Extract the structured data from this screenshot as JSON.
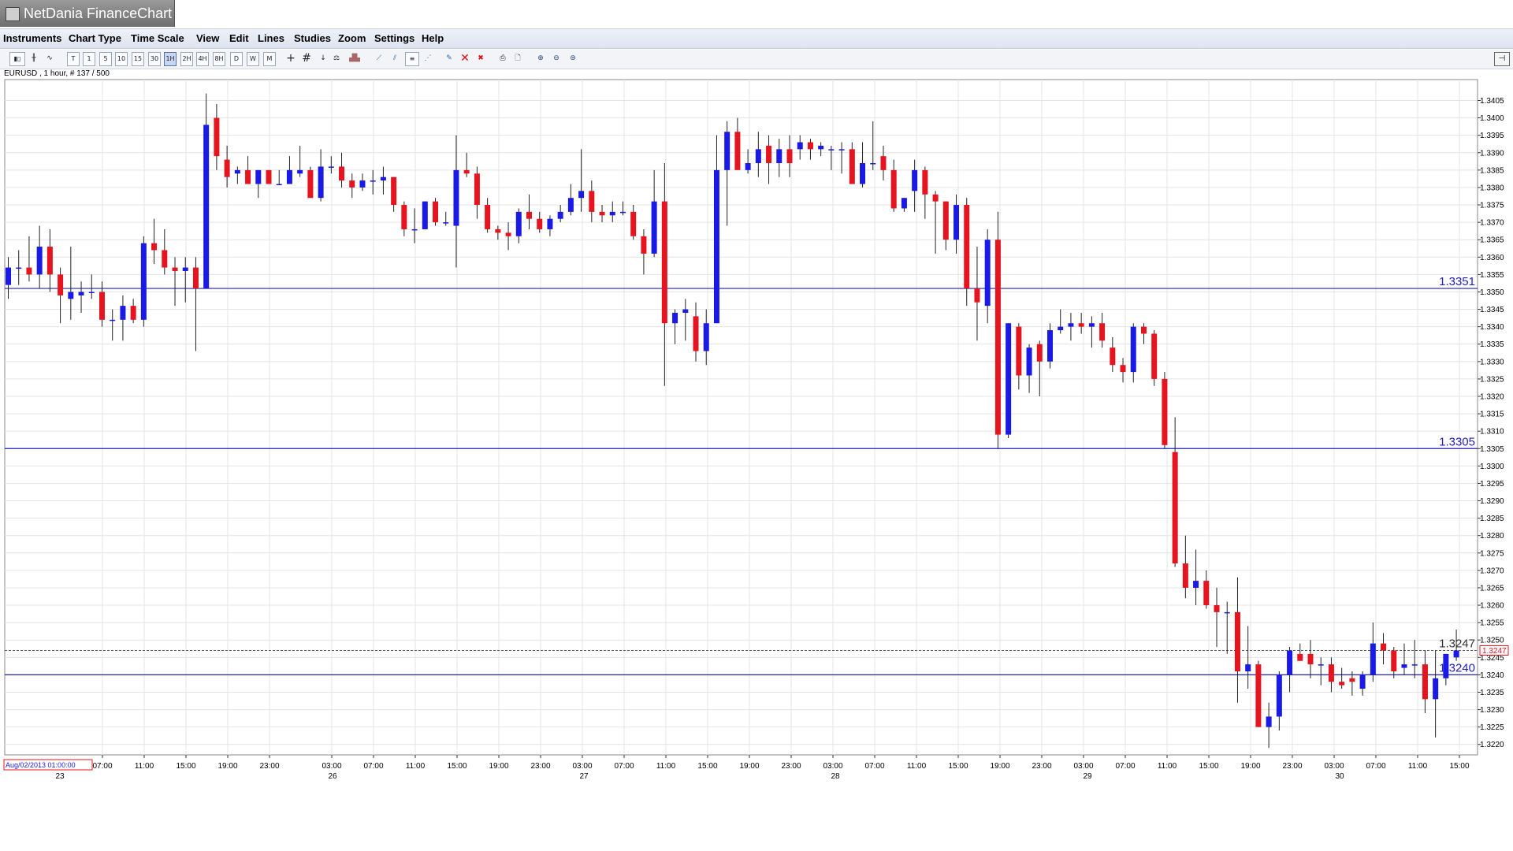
{
  "window": {
    "title": "NetDania FinanceChart"
  },
  "menu": [
    "Instruments",
    "Chart Type",
    "Time Scale",
    "View",
    "Edit",
    "Lines",
    "Studies",
    "Zoom",
    "Settings",
    "Help"
  ],
  "toolbar": {
    "timescale_buttons": [
      "T",
      "1",
      "5",
      "10",
      "15",
      "30",
      "1H",
      "2H",
      "4H",
      "8H",
      "D",
      "W",
      "M"
    ],
    "selected": "1H"
  },
  "chart_info": "EURUSD , 1 hour, # 137 / 500",
  "colors": {
    "up": "#1a1ae6",
    "down": "#e6141e",
    "hline": "#2222bb",
    "grid": "#e4e4e4"
  },
  "chart_data": {
    "type": "candlestick",
    "symbol": "EURUSD",
    "interval": "1 hour",
    "ylim": [
      1.3217,
      1.3411
    ],
    "y_ticks": [
      1.322,
      1.3225,
      1.323,
      1.3235,
      1.324,
      1.3245,
      1.325,
      1.3255,
      1.326,
      1.3265,
      1.327,
      1.3275,
      1.328,
      1.3285,
      1.329,
      1.3295,
      1.33,
      1.3305,
      1.331,
      1.3315,
      1.332,
      1.3325,
      1.333,
      1.3335,
      1.334,
      1.3345,
      1.335,
      1.3355,
      1.336,
      1.3365,
      1.337,
      1.3375,
      1.338,
      1.3385,
      1.339,
      1.3395,
      1.34,
      1.3405
    ],
    "x_time_labels": [
      "07:00",
      "11:00",
      "15:00",
      "19:00",
      "23:00",
      "03:00",
      "07:00",
      "11:00",
      "15:00",
      "19:00",
      "23:00",
      "03:00",
      "07:00",
      "11:00",
      "15:00",
      "19:00",
      "23:00",
      "03:00",
      "07:00",
      "11:00",
      "15:00",
      "19:00",
      "23:00",
      "03:00",
      "07:00",
      "11:00",
      "15:00",
      "19:00",
      "23:00",
      "03:00",
      "07:00",
      "11:00",
      "15:00"
    ],
    "x_date_labels": [
      "23",
      "26",
      "27",
      "28",
      "29",
      "30"
    ],
    "cursor_date": "Aug/02/2013 01:00:00",
    "horizontal_lines": [
      {
        "label": "1.3351",
        "value": 1.3351
      },
      {
        "label": "1.3305",
        "value": 1.3305
      },
      {
        "label": "1.3240",
        "value": 1.324
      }
    ],
    "current_price": {
      "label": "1.3247",
      "value": 1.3247
    },
    "candles": [
      [
        1.3352,
        1.336,
        1.3348,
        1.3357
      ],
      [
        1.3357,
        1.3362,
        1.3352,
        1.3357
      ],
      [
        1.3357,
        1.3366,
        1.3353,
        1.3355
      ],
      [
        1.3355,
        1.3369,
        1.3351,
        1.3363
      ],
      [
        1.3363,
        1.3368,
        1.335,
        1.3355
      ],
      [
        1.3355,
        1.3357,
        1.3341,
        1.3349
      ],
      [
        1.3348,
        1.3363,
        1.3342,
        1.335
      ],
      [
        1.3349,
        1.3353,
        1.3344,
        1.335
      ],
      [
        1.335,
        1.3355,
        1.3348,
        1.335
      ],
      [
        1.335,
        1.3353,
        1.334,
        1.3342
      ],
      [
        1.3342,
        1.3345,
        1.3336,
        1.3342
      ],
      [
        1.3342,
        1.3349,
        1.3336,
        1.3346
      ],
      [
        1.3346,
        1.3348,
        1.3341,
        1.3342
      ],
      [
        1.3342,
        1.3366,
        1.334,
        1.3364
      ],
      [
        1.3364,
        1.3371,
        1.3358,
        1.3362
      ],
      [
        1.3362,
        1.3368,
        1.3355,
        1.3357
      ],
      [
        1.3357,
        1.336,
        1.3346,
        1.3356
      ],
      [
        1.3356,
        1.336,
        1.3347,
        1.3357
      ],
      [
        1.3357,
        1.336,
        1.3333,
        1.3351
      ],
      [
        1.3351,
        1.3407,
        1.3351,
        1.3398
      ],
      [
        1.34,
        1.3404,
        1.3385,
        1.3389
      ],
      [
        1.3388,
        1.3392,
        1.338,
        1.3383
      ],
      [
        1.3384,
        1.3386,
        1.3381,
        1.3385
      ],
      [
        1.3385,
        1.3389,
        1.3381,
        1.3381
      ],
      [
        1.3381,
        1.3385,
        1.3377,
        1.3385
      ],
      [
        1.3385,
        1.3385,
        1.3381,
        1.3381
      ],
      [
        1.3381,
        1.3385,
        1.3381,
        1.3381
      ],
      [
        1.3381,
        1.3389,
        1.3381,
        1.3385
      ],
      [
        1.3384,
        1.3392,
        1.3383,
        1.3385
      ],
      [
        1.3385,
        1.3386,
        1.3377,
        1.3377
      ],
      [
        1.3377,
        1.3391,
        1.3376,
        1.3386
      ],
      [
        1.3386,
        1.3389,
        1.3384,
        1.3386
      ],
      [
        1.3386,
        1.339,
        1.338,
        1.3382
      ],
      [
        1.3382,
        1.3384,
        1.3377,
        1.338
      ],
      [
        1.338,
        1.3384,
        1.3379,
        1.3382
      ],
      [
        1.3382,
        1.3385,
        1.3378,
        1.3382
      ],
      [
        1.3382,
        1.3386,
        1.3378,
        1.3383
      ],
      [
        1.3383,
        1.3383,
        1.3373,
        1.3375
      ],
      [
        1.3375,
        1.3376,
        1.3366,
        1.3368
      ],
      [
        1.3368,
        1.3374,
        1.3364,
        1.3368
      ],
      [
        1.3368,
        1.3376,
        1.3368,
        1.3376
      ],
      [
        1.3376,
        1.3377,
        1.3369,
        1.337
      ],
      [
        1.337,
        1.3373,
        1.3369,
        1.337
      ],
      [
        1.3369,
        1.3395,
        1.3357,
        1.3385
      ],
      [
        1.3385,
        1.339,
        1.3383,
        1.3384
      ],
      [
        1.3384,
        1.3386,
        1.3371,
        1.3375
      ],
      [
        1.3375,
        1.3377,
        1.3367,
        1.3368
      ],
      [
        1.3368,
        1.3369,
        1.3365,
        1.3367
      ],
      [
        1.3367,
        1.337,
        1.3362,
        1.3366
      ],
      [
        1.3366,
        1.3374,
        1.3364,
        1.3373
      ],
      [
        1.3373,
        1.3378,
        1.3368,
        1.3371
      ],
      [
        1.3371,
        1.3373,
        1.3367,
        1.3368
      ],
      [
        1.3368,
        1.3372,
        1.3366,
        1.3371
      ],
      [
        1.3371,
        1.3375,
        1.337,
        1.3373
      ],
      [
        1.3373,
        1.3381,
        1.3372,
        1.3377
      ],
      [
        1.3377,
        1.3391,
        1.3373,
        1.3379
      ],
      [
        1.3379,
        1.3382,
        1.337,
        1.3373
      ],
      [
        1.3373,
        1.3375,
        1.337,
        1.3372
      ],
      [
        1.3372,
        1.3376,
        1.337,
        1.3373
      ],
      [
        1.3373,
        1.3376,
        1.3372,
        1.3373
      ],
      [
        1.3373,
        1.3375,
        1.3365,
        1.3366
      ],
      [
        1.3366,
        1.3368,
        1.3355,
        1.3361
      ],
      [
        1.3361,
        1.3385,
        1.336,
        1.3376
      ],
      [
        1.3376,
        1.3387,
        1.3323,
        1.3341
      ],
      [
        1.3341,
        1.3345,
        1.3335,
        1.3344
      ],
      [
        1.3344,
        1.3348,
        1.3336,
        1.3345
      ],
      [
        1.3343,
        1.3347,
        1.333,
        1.3333
      ],
      [
        1.3333,
        1.3345,
        1.3329,
        1.3341
      ],
      [
        1.3341,
        1.3395,
        1.3341,
        1.3385
      ],
      [
        1.3385,
        1.3399,
        1.3369,
        1.3396
      ],
      [
        1.3396,
        1.34,
        1.3386,
        1.3385
      ],
      [
        1.3385,
        1.3391,
        1.3384,
        1.3387
      ],
      [
        1.3387,
        1.3396,
        1.3383,
        1.3391
      ],
      [
        1.3392,
        1.3395,
        1.3381,
        1.3387
      ],
      [
        1.3387,
        1.3394,
        1.3383,
        1.3391
      ],
      [
        1.3391,
        1.3395,
        1.3383,
        1.3387
      ],
      [
        1.3391,
        1.3395,
        1.3388,
        1.3393
      ],
      [
        1.3393,
        1.3394,
        1.3388,
        1.3391
      ],
      [
        1.3391,
        1.3393,
        1.3389,
        1.3392
      ],
      [
        1.3391,
        1.3392,
        1.3385,
        1.3391
      ],
      [
        1.3391,
        1.3393,
        1.3384,
        1.3391
      ],
      [
        1.3391,
        1.3393,
        1.3381,
        1.3381
      ],
      [
        1.3381,
        1.3393,
        1.338,
        1.3387
      ],
      [
        1.3387,
        1.3399,
        1.3385,
        1.3387
      ],
      [
        1.3389,
        1.3392,
        1.3382,
        1.3385
      ],
      [
        1.3385,
        1.3388,
        1.3373,
        1.3374
      ],
      [
        1.3374,
        1.3377,
        1.3373,
        1.3377
      ],
      [
        1.3379,
        1.3388,
        1.3373,
        1.3385
      ],
      [
        1.3385,
        1.3386,
        1.3371,
        1.3378
      ],
      [
        1.3378,
        1.3379,
        1.3361,
        1.3376
      ],
      [
        1.3376,
        1.3376,
        1.3362,
        1.3365
      ],
      [
        1.3365,
        1.3378,
        1.3361,
        1.3375
      ],
      [
        1.3375,
        1.3377,
        1.3346,
        1.3351
      ],
      [
        1.3351,
        1.3363,
        1.3336,
        1.3347
      ],
      [
        1.3346,
        1.3368,
        1.3341,
        1.3365
      ],
      [
        1.3365,
        1.3373,
        1.3305,
        1.3309
      ],
      [
        1.3309,
        1.3341,
        1.3308,
        1.3341
      ],
      [
        1.334,
        1.3341,
        1.3322,
        1.3326
      ],
      [
        1.3326,
        1.3335,
        1.3321,
        1.3334
      ],
      [
        1.3335,
        1.3336,
        1.332,
        1.333
      ],
      [
        1.333,
        1.3341,
        1.3328,
        1.3339
      ],
      [
        1.3339,
        1.3345,
        1.3338,
        1.334
      ],
      [
        1.334,
        1.3344,
        1.3336,
        1.3341
      ],
      [
        1.3341,
        1.3344,
        1.3338,
        1.334
      ],
      [
        1.334,
        1.3343,
        1.3334,
        1.3341
      ],
      [
        1.3341,
        1.3344,
        1.3334,
        1.3336
      ],
      [
        1.3334,
        1.3337,
        1.3327,
        1.3329
      ],
      [
        1.3329,
        1.3331,
        1.3324,
        1.3327
      ],
      [
        1.3327,
        1.3341,
        1.3324,
        1.334
      ],
      [
        1.334,
        1.3341,
        1.3335,
        1.3338
      ],
      [
        1.3338,
        1.3339,
        1.3323,
        1.3325
      ],
      [
        1.3325,
        1.3327,
        1.3305,
        1.3306
      ],
      [
        1.3304,
        1.3314,
        1.3271,
        1.3272
      ],
      [
        1.3272,
        1.328,
        1.3262,
        1.3265
      ],
      [
        1.3265,
        1.3276,
        1.326,
        1.3267
      ],
      [
        1.3267,
        1.327,
        1.3259,
        1.326
      ],
      [
        1.326,
        1.3265,
        1.3248,
        1.3258
      ],
      [
        1.3258,
        1.3261,
        1.3246,
        1.3258
      ],
      [
        1.3258,
        1.3268,
        1.3232,
        1.3241
      ],
      [
        1.3241,
        1.3254,
        1.3236,
        1.3243
      ],
      [
        1.3243,
        1.3244,
        1.3225,
        1.3225
      ],
      [
        1.3225,
        1.3232,
        1.3219,
        1.3228
      ],
      [
        1.3228,
        1.3241,
        1.3224,
        1.324
      ],
      [
        1.324,
        1.3248,
        1.3235,
        1.3247
      ],
      [
        1.3246,
        1.3249,
        1.3244,
        1.3244
      ],
      [
        1.3246,
        1.325,
        1.3239,
        1.3243
      ],
      [
        1.3243,
        1.3245,
        1.3237,
        1.3243
      ],
      [
        1.3243,
        1.3245,
        1.3235,
        1.3238
      ],
      [
        1.3238,
        1.3242,
        1.3236,
        1.3237
      ],
      [
        1.3239,
        1.3241,
        1.3234,
        1.3238
      ],
      [
        1.3236,
        1.3241,
        1.3234,
        1.324
      ],
      [
        1.324,
        1.3255,
        1.3238,
        1.3249
      ],
      [
        1.3249,
        1.3252,
        1.3243,
        1.3247
      ],
      [
        1.3247,
        1.3248,
        1.3239,
        1.3241
      ],
      [
        1.3242,
        1.3249,
        1.324,
        1.3243
      ],
      [
        1.3243,
        1.325,
        1.3239,
        1.3243
      ],
      [
        1.3243,
        1.3247,
        1.3229,
        1.3233
      ],
      [
        1.3233,
        1.3247,
        1.3222,
        1.3239
      ],
      [
        1.3239,
        1.3246,
        1.3237,
        1.3246
      ],
      [
        1.3245,
        1.3253,
        1.3244,
        1.3247
      ]
    ]
  }
}
